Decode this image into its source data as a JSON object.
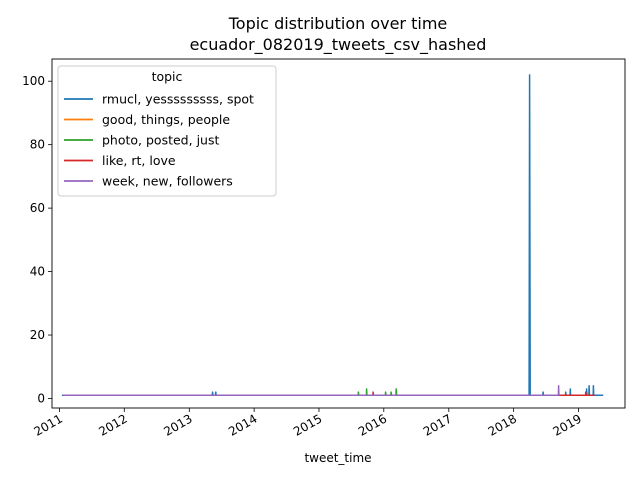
{
  "chart_data": {
    "type": "line",
    "title": "Topic distribution over time",
    "subtitle": "ecuador_082019_tweets_csv_hashed",
    "xlabel": "tweet_time",
    "ylabel": "",
    "x_ticks": [
      "2011",
      "2012",
      "2013",
      "2014",
      "2015",
      "2016",
      "2017",
      "2018",
      "2019"
    ],
    "y_ticks": [
      "0",
      "20",
      "40",
      "60",
      "80",
      "100"
    ],
    "xlim": [
      "2010-11-20",
      "2019-09-20"
    ],
    "ylim": [
      -3,
      107
    ],
    "legend": {
      "title": "topic",
      "placement": "upper left"
    },
    "series": [
      {
        "name": "rmucl, yesssssssss, spot",
        "color": "#1f77b4",
        "points": [
          [
            "2011-01-15",
            1
          ],
          [
            "2011-03-01",
            1
          ],
          [
            "2012-03-10",
            1
          ],
          [
            "2012-12-01",
            1
          ],
          [
            "2013-03-01",
            1
          ],
          [
            "2013-05-10",
            1
          ],
          [
            "2013-05-12",
            2
          ],
          [
            "2013-05-14",
            1
          ],
          [
            "2013-05-28",
            1
          ],
          [
            "2013-05-30",
            2
          ],
          [
            "2013-06-01",
            1
          ],
          [
            "2014-02-01",
            1
          ],
          [
            "2014-11-01",
            1
          ],
          [
            "2015-04-01",
            1
          ],
          [
            "2015-09-01",
            1
          ],
          [
            "2016-04-01",
            1
          ],
          [
            "2017-01-01",
            1
          ],
          [
            "2017-08-01",
            1
          ],
          [
            "2018-01-01",
            1
          ],
          [
            "2018-03-15",
            1
          ],
          [
            "2018-03-29",
            1
          ],
          [
            "2018-04-01",
            102
          ],
          [
            "2018-04-03",
            34
          ],
          [
            "2018-04-04",
            1
          ],
          [
            "2018-05-01",
            1
          ],
          [
            "2018-06-15",
            1
          ],
          [
            "2018-06-16",
            2
          ],
          [
            "2018-06-18",
            1
          ],
          [
            "2018-10-20",
            1
          ],
          [
            "2018-10-21",
            2
          ],
          [
            "2018-10-23",
            1
          ],
          [
            "2018-11-15",
            1
          ],
          [
            "2018-11-16",
            3
          ],
          [
            "2018-11-18",
            1
          ],
          [
            "2019-02-01",
            1
          ],
          [
            "2019-02-15",
            1
          ],
          [
            "2019-02-16",
            3
          ],
          [
            "2019-02-18",
            1
          ],
          [
            "2019-03-01",
            1
          ],
          [
            "2019-03-02",
            4
          ],
          [
            "2019-03-04",
            1
          ],
          [
            "2019-03-25",
            1
          ],
          [
            "2019-03-26",
            4
          ],
          [
            "2019-03-28",
            1
          ],
          [
            "2019-05-20",
            1
          ]
        ]
      },
      {
        "name": "good, things, people",
        "color": "#ff7f0e",
        "points": [
          [
            "2013-06-10",
            1
          ],
          [
            "2013-06-25",
            1
          ],
          [
            "2018-09-01",
            1
          ],
          [
            "2018-09-20",
            1
          ]
        ]
      },
      {
        "name": "photo, posted, just",
        "color": "#2ca02c",
        "points": [
          [
            "2015-08-10",
            1
          ],
          [
            "2015-08-11",
            2
          ],
          [
            "2015-08-13",
            1
          ],
          [
            "2015-09-25",
            1
          ],
          [
            "2015-09-26",
            3
          ],
          [
            "2015-09-28",
            1
          ],
          [
            "2016-01-10",
            1
          ],
          [
            "2016-01-11",
            2
          ],
          [
            "2016-01-13",
            1
          ],
          [
            "2016-02-10",
            1
          ],
          [
            "2016-02-11",
            2
          ],
          [
            "2016-02-13",
            1
          ],
          [
            "2016-03-10",
            1
          ],
          [
            "2016-03-11",
            3
          ],
          [
            "2016-03-13",
            1
          ]
        ]
      },
      {
        "name": "like, rt, love",
        "color": "#d62728",
        "points": [
          [
            "2011-04-20",
            1
          ],
          [
            "2011-05-10",
            1
          ],
          [
            "2011-06-01",
            1
          ],
          [
            "2012-01-05",
            1
          ],
          [
            "2012-03-15",
            1
          ],
          [
            "2013-01-10",
            1
          ],
          [
            "2014-01-10",
            1
          ],
          [
            "2014-06-01",
            1
          ],
          [
            "2015-11-01",
            1
          ],
          [
            "2015-11-02",
            2
          ],
          [
            "2015-11-04",
            1
          ],
          [
            "2017-06-01",
            1
          ],
          [
            "2018-02-01",
            1
          ],
          [
            "2019-01-20",
            1
          ],
          [
            "2019-02-10",
            1
          ],
          [
            "2019-02-11",
            2
          ],
          [
            "2019-02-13",
            1
          ],
          [
            "2019-04-01",
            1
          ]
        ]
      },
      {
        "name": "week, new, followers",
        "color": "#9467bd",
        "points": [
          [
            "2011-01-20",
            1
          ],
          [
            "2011-02-05",
            1
          ],
          [
            "2013-01-01",
            1
          ],
          [
            "2013-02-20",
            1
          ],
          [
            "2014-09-01",
            1
          ],
          [
            "2015-05-01",
            1
          ],
          [
            "2016-06-01",
            1
          ],
          [
            "2016-08-01",
            1
          ],
          [
            "2017-03-01",
            1
          ],
          [
            "2017-10-01",
            1
          ],
          [
            "2018-09-10",
            1
          ],
          [
            "2018-09-11",
            4
          ],
          [
            "2018-09-13",
            1
          ]
        ]
      }
    ]
  }
}
